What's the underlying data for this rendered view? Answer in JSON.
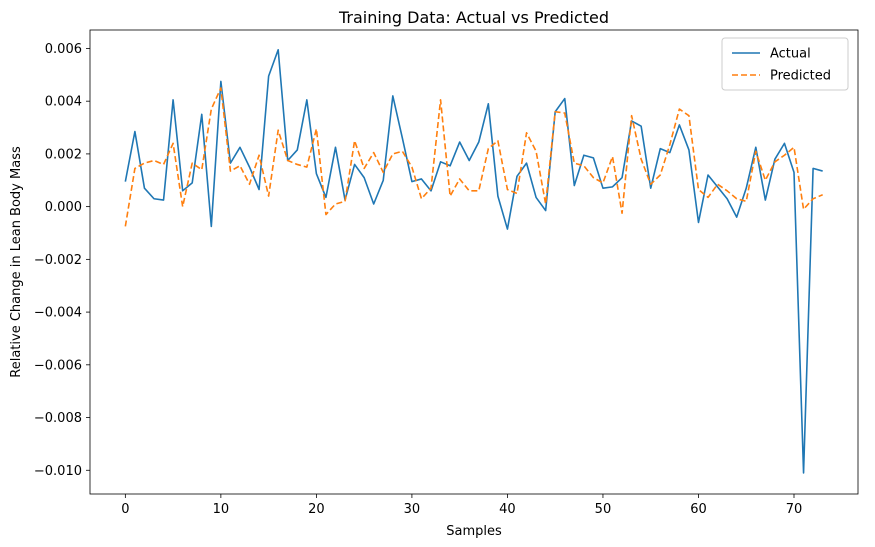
{
  "chart_data": {
    "type": "line",
    "title": "Training Data: Actual vs Predicted",
    "xlabel": "Samples",
    "ylabel": "Relative Change in Lean Body Mass",
    "xlim": [
      -3.7,
      76.7
    ],
    "ylim": [
      -0.0109,
      0.0067
    ],
    "x_ticks": [
      0,
      10,
      20,
      30,
      40,
      50,
      60,
      70
    ],
    "x_tick_labels": [
      "0",
      "10",
      "20",
      "30",
      "40",
      "50",
      "60",
      "70"
    ],
    "y_ticks": [
      0.006,
      0.004,
      0.002,
      0.0,
      -0.002,
      -0.004,
      -0.006,
      -0.008,
      -0.01
    ],
    "y_tick_labels": [
      "0.006",
      "0.004",
      "0.002",
      "0.000",
      "−0.002",
      "−0.004",
      "−0.006",
      "−0.008",
      "−0.010"
    ],
    "grid": false,
    "legend_position": "top-right",
    "series": [
      {
        "name": "Actual",
        "color": "#1f77b4",
        "style": "solid",
        "values": [
          0.00095,
          0.00285,
          0.0007,
          0.0003,
          0.00025,
          0.00405,
          0.0006,
          0.0009,
          0.0035,
          -0.00075,
          0.00475,
          0.00165,
          0.00225,
          0.0015,
          0.00065,
          0.00495,
          0.00595,
          0.00175,
          0.00215,
          0.00405,
          0.00125,
          0.00035,
          0.00225,
          0.00025,
          0.0016,
          0.0011,
          0.0001,
          0.001,
          0.0042,
          0.0026,
          0.00095,
          0.00105,
          0.0006,
          0.0017,
          0.00155,
          0.00245,
          0.00175,
          0.00245,
          0.0039,
          0.0004,
          -0.00085,
          0.00115,
          0.00165,
          0.00035,
          -0.00015,
          0.0036,
          0.0041,
          0.0008,
          0.00195,
          0.00185,
          0.0007,
          0.00075,
          0.0011,
          0.00325,
          0.00305,
          0.0007,
          0.0022,
          0.00205,
          0.0031,
          0.00215,
          -0.0006,
          0.0012,
          0.00075,
          0.0003,
          -0.0004,
          0.0007,
          0.00225,
          0.00025,
          0.0018,
          0.0024,
          0.0013,
          -0.0101,
          0.00145,
          0.00135
        ]
      },
      {
        "name": "Predicted",
        "color": "#ff7f0e",
        "style": "dashed",
        "values": [
          -0.00075,
          0.00145,
          0.00165,
          0.00175,
          0.0016,
          0.0024,
          0.0,
          0.00165,
          0.0014,
          0.0037,
          0.0045,
          0.00135,
          0.00155,
          0.00085,
          0.00195,
          0.0004,
          0.0029,
          0.00175,
          0.0016,
          0.0015,
          0.00295,
          -0.0003,
          0.0001,
          0.0002,
          0.0025,
          0.00145,
          0.00205,
          0.0013,
          0.002,
          0.0021,
          0.0015,
          0.0003,
          0.0007,
          0.00405,
          0.0004,
          0.00105,
          0.0006,
          0.0006,
          0.0022,
          0.0025,
          0.00065,
          0.0005,
          0.0028,
          0.0021,
          0.0001,
          0.0036,
          0.00355,
          0.00165,
          0.00155,
          0.0011,
          0.0009,
          0.0019,
          -0.00025,
          0.00345,
          0.0018,
          0.00085,
          0.0012,
          0.00235,
          0.0037,
          0.00345,
          0.00065,
          0.00035,
          0.00085,
          0.0006,
          0.0003,
          0.0002,
          0.0021,
          0.001,
          0.0017,
          0.00195,
          0.00225,
          -0.0001,
          0.0003,
          0.00045
        ]
      }
    ]
  }
}
